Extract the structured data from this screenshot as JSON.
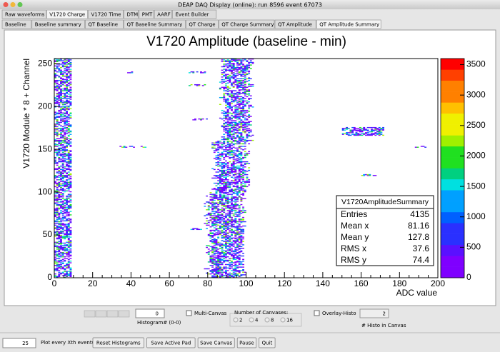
{
  "window": {
    "title": "DEAP DAQ Display (online): run 8596 event 67073"
  },
  "tabs": [
    {
      "label": "Raw waveforms"
    },
    {
      "label": "V1720 Charge",
      "active": true
    },
    {
      "label": "V1720 Time"
    },
    {
      "label": "DTM"
    },
    {
      "label": "PMT"
    },
    {
      "label": "AARF"
    },
    {
      "label": "Event Builder"
    }
  ],
  "subtabs": [
    {
      "label": "Baseline"
    },
    {
      "label": "Baseline summary"
    },
    {
      "label": "QT Baseline"
    },
    {
      "label": "QT Baseline Summary"
    },
    {
      "label": "QT Charge"
    },
    {
      "label": "QT Charge Summary"
    },
    {
      "label": "QT Amplitude"
    },
    {
      "label": "QT Amplitude Summary",
      "active": true
    }
  ],
  "chart_data": {
    "type": "heatmap",
    "title": "V1720 Amplitude (baseline - min)",
    "x_label": "ADC value",
    "y_label": "V1720 Module * 8 + Channel",
    "xlim": [
      0,
      200
    ],
    "xticks": [
      0,
      20,
      40,
      60,
      80,
      100,
      120,
      140,
      160,
      180,
      200
    ],
    "ylim": [
      0,
      256
    ],
    "yticks": [
      0,
      50,
      100,
      150,
      200,
      250
    ],
    "zlim": [
      0,
      3600
    ],
    "zticks": [
      0,
      500,
      1000,
      1500,
      2000,
      2500,
      3000,
      3500
    ],
    "palette": [
      "#7f00ff",
      "#5a10ff",
      "#2a30ff",
      "#0060ff",
      "#00a0ff",
      "#00e0e0",
      "#00d080",
      "#20e020",
      "#a0f000",
      "#f0f000",
      "#ffc000",
      "#ff8000",
      "#ff4000",
      "#ff0000"
    ],
    "regions": [
      {
        "x": [
          0,
          9
        ],
        "y": [
          0,
          256
        ]
      },
      {
        "x": [
          80,
          98
        ],
        "y": [
          0,
          100
        ]
      },
      {
        "x": [
          84,
          100
        ],
        "y": [
          100,
          160
        ]
      },
      {
        "x": [
          88,
          102
        ],
        "y": [
          160,
          256
        ]
      },
      {
        "x": [
          38,
          44
        ],
        "y": [
          239,
          241
        ]
      },
      {
        "x": [
          70,
          80
        ],
        "y": [
          239,
          241
        ]
      },
      {
        "x": [
          70,
          80
        ],
        "y": [
          224,
          226
        ]
      },
      {
        "x": [
          72,
          80
        ],
        "y": [
          184,
          186
        ]
      },
      {
        "x": [
          34,
          48
        ],
        "y": [
          152,
          154
        ]
      },
      {
        "x": [
          188,
          194
        ],
        "y": [
          152,
          154
        ]
      },
      {
        "x": [
          150,
          172
        ],
        "y": [
          166,
          176
        ]
      },
      {
        "x": [
          160,
          168
        ],
        "y": [
          119,
          121
        ]
      },
      {
        "x": [
          70,
          78
        ],
        "y": [
          56,
          58
        ]
      }
    ]
  },
  "stats": {
    "title": "V1720AmplitudeSummary",
    "rows": [
      [
        "Entries",
        4135
      ],
      [
        "Mean x",
        81.16
      ],
      [
        "Mean y",
        127.8
      ],
      [
        "RMS x",
        37.6
      ],
      [
        "RMS y",
        74.4
      ]
    ]
  },
  "controls": {
    "histogram_value": 0,
    "histogram_label": "Histogram# (0-0)",
    "multi_canvas": "Multi-Canvas",
    "canvases_group": "Number of Canvases:",
    "canvas_options": [
      2,
      4,
      8,
      16
    ],
    "overlay": "Overlay-Histo",
    "histo_count": 2,
    "histo_label": "# Histo in Canvas",
    "every_value": 25,
    "every_label": "Plot every Xth events",
    "buttons": [
      {
        "label": "Reset Histograms"
      },
      {
        "label": "Save Active Pad",
        "disabled": true
      },
      {
        "label": "Save Canvas",
        "disabled": true
      },
      {
        "label": "Pause"
      },
      {
        "label": "Quit"
      }
    ]
  }
}
